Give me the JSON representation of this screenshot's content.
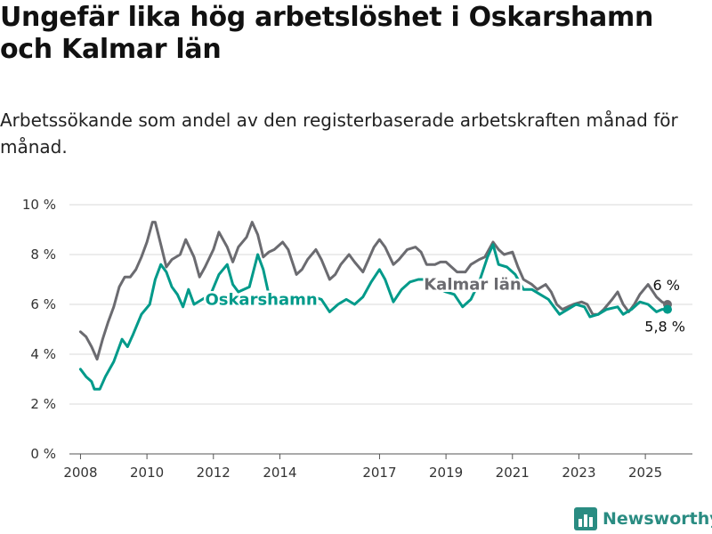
{
  "title": "Ungefär lika hög arbetslöshet i Oskarshamn och Kalmar län",
  "subtitle": "Arbetssökande som andel av den registerbaserade arbetskraften månad för månad.",
  "brand": "Newsworthy",
  "colors": {
    "oskarshamn": "#009a8a",
    "kalmar": "#6b6b70",
    "grid": "#d9d9d9",
    "brand": "#2a8c82"
  },
  "chart_data": {
    "type": "line",
    "x_ticks": [
      "2008",
      "2010",
      "2012",
      "2014",
      "2017",
      "2019",
      "2021",
      "2023",
      "2025"
    ],
    "y_ticks": [
      "0 %",
      "2 %",
      "4 %",
      "6 %",
      "8 %",
      "10 %"
    ],
    "ylim": [
      0,
      10
    ],
    "xlim": [
      "2007-09",
      "2026-06"
    ],
    "grid": true,
    "series": [
      {
        "name": "Kalmar län",
        "color": "#6b6b70",
        "end_label": "6 %",
        "points": [
          [
            "2008-01",
            4.9
          ],
          [
            "2008-03",
            4.7
          ],
          [
            "2008-05",
            4.3
          ],
          [
            "2008-07",
            3.8
          ],
          [
            "2008-09",
            4.6
          ],
          [
            "2008-11",
            5.3
          ],
          [
            "2009-01",
            5.9
          ],
          [
            "2009-03",
            6.7
          ],
          [
            "2009-05",
            7.1
          ],
          [
            "2009-07",
            7.1
          ],
          [
            "2009-09",
            7.4
          ],
          [
            "2009-11",
            7.9
          ],
          [
            "2010-01",
            8.5
          ],
          [
            "2010-03",
            9.3
          ],
          [
            "2010-04",
            9.3
          ],
          [
            "2010-06",
            8.4
          ],
          [
            "2010-08",
            7.5
          ],
          [
            "2010-10",
            7.8
          ],
          [
            "2011-01",
            8.0
          ],
          [
            "2011-03",
            8.6
          ],
          [
            "2011-06",
            7.9
          ],
          [
            "2011-08",
            7.1
          ],
          [
            "2011-10",
            7.5
          ],
          [
            "2012-01",
            8.2
          ],
          [
            "2012-03",
            8.9
          ],
          [
            "2012-06",
            8.3
          ],
          [
            "2012-08",
            7.7
          ],
          [
            "2012-10",
            8.3
          ],
          [
            "2013-01",
            8.7
          ],
          [
            "2013-03",
            9.3
          ],
          [
            "2013-05",
            8.8
          ],
          [
            "2013-07",
            7.9
          ],
          [
            "2013-09",
            8.1
          ],
          [
            "2013-11",
            8.2
          ],
          [
            "2014-02",
            8.5
          ],
          [
            "2014-04",
            8.2
          ],
          [
            "2014-07",
            7.2
          ],
          [
            "2014-09",
            7.4
          ],
          [
            "2014-11",
            7.8
          ],
          [
            "2015-02",
            8.2
          ],
          [
            "2015-04",
            7.8
          ],
          [
            "2015-07",
            7.0
          ],
          [
            "2015-09",
            7.2
          ],
          [
            "2015-11",
            7.6
          ],
          [
            "2016-02",
            8.0
          ],
          [
            "2016-04",
            7.7
          ],
          [
            "2016-07",
            7.3
          ],
          [
            "2016-09",
            7.8
          ],
          [
            "2016-11",
            8.3
          ],
          [
            "2017-01",
            8.6
          ],
          [
            "2017-03",
            8.3
          ],
          [
            "2017-06",
            7.6
          ],
          [
            "2017-08",
            7.8
          ],
          [
            "2017-11",
            8.2
          ],
          [
            "2018-02",
            8.3
          ],
          [
            "2018-04",
            8.1
          ],
          [
            "2018-06",
            7.6
          ],
          [
            "2018-09",
            7.6
          ],
          [
            "2018-11",
            7.7
          ],
          [
            "2019-01",
            7.7
          ],
          [
            "2019-03",
            7.5
          ],
          [
            "2019-05",
            7.3
          ],
          [
            "2019-08",
            7.3
          ],
          [
            "2019-10",
            7.6
          ],
          [
            "2020-01",
            7.8
          ],
          [
            "2020-03",
            7.9
          ],
          [
            "2020-06",
            8.5
          ],
          [
            "2020-08",
            8.2
          ],
          [
            "2020-10",
            8.0
          ],
          [
            "2021-01",
            8.1
          ],
          [
            "2021-03",
            7.5
          ],
          [
            "2021-05",
            7.0
          ],
          [
            "2021-08",
            6.8
          ],
          [
            "2021-10",
            6.6
          ],
          [
            "2022-01",
            6.8
          ],
          [
            "2022-03",
            6.5
          ],
          [
            "2022-05",
            6.0
          ],
          [
            "2022-07",
            5.8
          ],
          [
            "2022-09",
            5.9
          ],
          [
            "2022-11",
            6.0
          ],
          [
            "2023-02",
            6.1
          ],
          [
            "2023-04",
            6.0
          ],
          [
            "2023-06",
            5.6
          ],
          [
            "2023-08",
            5.6
          ],
          [
            "2023-10",
            5.8
          ],
          [
            "2024-01",
            6.2
          ],
          [
            "2024-03",
            6.5
          ],
          [
            "2024-05",
            6.0
          ],
          [
            "2024-07",
            5.7
          ],
          [
            "2024-09",
            6.0
          ],
          [
            "2024-11",
            6.4
          ],
          [
            "2025-02",
            6.8
          ],
          [
            "2025-05",
            6.3
          ],
          [
            "2025-07",
            6.1
          ],
          [
            "2025-09",
            6.0
          ]
        ]
      },
      {
        "name": "Oskarshamn",
        "color": "#009a8a",
        "end_label": "5,8 %",
        "points": [
          [
            "2008-01",
            3.4
          ],
          [
            "2008-03",
            3.1
          ],
          [
            "2008-05",
            2.9
          ],
          [
            "2008-06",
            2.6
          ],
          [
            "2008-08",
            2.6
          ],
          [
            "2008-10",
            3.1
          ],
          [
            "2009-01",
            3.7
          ],
          [
            "2009-04",
            4.6
          ],
          [
            "2009-06",
            4.3
          ],
          [
            "2009-08",
            4.8
          ],
          [
            "2009-11",
            5.6
          ],
          [
            "2010-02",
            6.0
          ],
          [
            "2010-04",
            7.0
          ],
          [
            "2010-06",
            7.6
          ],
          [
            "2010-08",
            7.3
          ],
          [
            "2010-10",
            6.7
          ],
          [
            "2010-12",
            6.4
          ],
          [
            "2011-02",
            5.9
          ],
          [
            "2011-04",
            6.6
          ],
          [
            "2011-06",
            6.0
          ],
          [
            "2011-09",
            6.2
          ],
          [
            "2011-12",
            6.4
          ],
          [
            "2012-03",
            7.2
          ],
          [
            "2012-06",
            7.6
          ],
          [
            "2012-08",
            6.8
          ],
          [
            "2012-10",
            6.5
          ],
          [
            "2013-02",
            6.7
          ],
          [
            "2013-05",
            8.0
          ],
          [
            "2013-07",
            7.4
          ],
          [
            "2013-09",
            6.4
          ],
          [
            "2013-12",
            6.3
          ],
          [
            "2014-03",
            6.3
          ],
          [
            "2014-06",
            6.0
          ],
          [
            "2014-09",
            6.1
          ],
          [
            "2015-01",
            6.3
          ],
          [
            "2015-04",
            6.2
          ],
          [
            "2015-07",
            5.7
          ],
          [
            "2015-10",
            6.0
          ],
          [
            "2016-01",
            6.2
          ],
          [
            "2016-04",
            6.0
          ],
          [
            "2016-07",
            6.3
          ],
          [
            "2016-10",
            6.9
          ],
          [
            "2017-01",
            7.4
          ],
          [
            "2017-03",
            7.0
          ],
          [
            "2017-06",
            6.1
          ],
          [
            "2017-09",
            6.6
          ],
          [
            "2017-12",
            6.9
          ],
          [
            "2018-03",
            7.0
          ],
          [
            "2018-06",
            7.0
          ],
          [
            "2018-09",
            6.7
          ],
          [
            "2019-01",
            6.5
          ],
          [
            "2019-04",
            6.4
          ],
          [
            "2019-07",
            5.9
          ],
          [
            "2019-10",
            6.2
          ],
          [
            "2020-01",
            6.9
          ],
          [
            "2020-04",
            7.9
          ],
          [
            "2020-06",
            8.4
          ],
          [
            "2020-08",
            7.6
          ],
          [
            "2020-11",
            7.5
          ],
          [
            "2021-02",
            7.2
          ],
          [
            "2021-05",
            6.6
          ],
          [
            "2021-08",
            6.6
          ],
          [
            "2021-11",
            6.4
          ],
          [
            "2022-02",
            6.2
          ],
          [
            "2022-04",
            5.9
          ],
          [
            "2022-06",
            5.6
          ],
          [
            "2022-09",
            5.8
          ],
          [
            "2022-12",
            6.0
          ],
          [
            "2023-03",
            5.9
          ],
          [
            "2023-05",
            5.5
          ],
          [
            "2023-08",
            5.6
          ],
          [
            "2023-11",
            5.8
          ],
          [
            "2024-03",
            5.9
          ],
          [
            "2024-05",
            5.6
          ],
          [
            "2024-08",
            5.8
          ],
          [
            "2024-11",
            6.1
          ],
          [
            "2025-02",
            6.0
          ],
          [
            "2025-05",
            5.7
          ],
          [
            "2025-07",
            5.8
          ],
          [
            "2025-09",
            5.8
          ]
        ]
      }
    ]
  }
}
